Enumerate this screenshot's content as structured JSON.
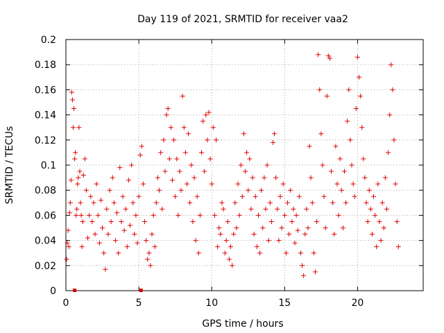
{
  "chart_data": {
    "type": "scatter",
    "title": "Day 119 of 2021, SRMTID for receiver vaa2",
    "xlabel": "GPS time / hours",
    "ylabel": "SRMTID / TECUs",
    "xlim": [
      0,
      24.5
    ],
    "ylim": [
      0,
      0.2
    ],
    "xticks": [
      0,
      5,
      10,
      15,
      20
    ],
    "xtick_labels": [
      "0",
      "5",
      "10",
      "15",
      "20"
    ],
    "yticks": [
      0,
      0.02,
      0.04,
      0.06,
      0.08,
      0.1,
      0.12,
      0.14,
      0.16,
      0.18,
      0.2
    ],
    "ytick_labels": [
      "0",
      "0.02",
      "0.04",
      "0.06",
      "0.08",
      "0.1",
      "0.12",
      "0.14",
      "0.16",
      "0.18",
      "0.2"
    ],
    "grid": true,
    "marker": "plus",
    "marker_color": "#e00000",
    "series": [
      {
        "name": "SRMTID",
        "points": [
          [
            0.05,
            0.025
          ],
          [
            0.1,
            0.038
          ],
          [
            0.15,
            0.048
          ],
          [
            0.2,
            0.035
          ],
          [
            0.25,
            0.062
          ],
          [
            0.3,
            0.07
          ],
          [
            0.35,
            0.088
          ],
          [
            0.4,
            0.158
          ],
          [
            0.45,
            0.152
          ],
          [
            0.5,
            0.13
          ],
          [
            0.55,
            0.145
          ],
          [
            0.6,
            0.105
          ],
          [
            0.65,
            0.11
          ],
          [
            0.7,
            0.06
          ],
          [
            0.75,
            0.065
          ],
          [
            0.8,
            0.085
          ],
          [
            0.85,
            0.09
          ],
          [
            0.9,
            0.13
          ],
          [
            0.95,
            0.095
          ],
          [
            1.0,
            0.07
          ],
          [
            1.05,
            0.06
          ],
          [
            1.1,
            0.035
          ],
          [
            1.15,
            0.055
          ],
          [
            1.2,
            0.092
          ],
          [
            1.3,
            0.105
          ],
          [
            1.4,
            0.08
          ],
          [
            1.5,
            0.042
          ],
          [
            1.6,
            0.06
          ],
          [
            1.7,
            0.075
          ],
          [
            1.8,
            0.055
          ],
          [
            1.9,
            0.07
          ],
          [
            2.0,
            0.045
          ],
          [
            2.1,
            0.085
          ],
          [
            2.2,
            0.06
          ],
          [
            2.3,
            0.038
          ],
          [
            2.4,
            0.072
          ],
          [
            2.5,
            0.05
          ],
          [
            2.6,
            0.03
          ],
          [
            2.7,
            0.017
          ],
          [
            2.8,
            0.065
          ],
          [
            2.9,
            0.045
          ],
          [
            3.0,
            0.08
          ],
          [
            3.1,
            0.055
          ],
          [
            3.2,
            0.09
          ],
          [
            3.3,
            0.07
          ],
          [
            3.4,
            0.04
          ],
          [
            3.5,
            0.062
          ],
          [
            3.6,
            0.03
          ],
          [
            3.7,
            0.098
          ],
          [
            3.8,
            0.055
          ],
          [
            3.9,
            0.075
          ],
          [
            4.0,
            0.048
          ],
          [
            4.1,
            0.065
          ],
          [
            4.2,
            0.035
          ],
          [
            4.3,
            0.088
          ],
          [
            4.4,
            0.052
          ],
          [
            4.5,
            0.1
          ],
          [
            4.6,
            0.07
          ],
          [
            4.7,
            0.045
          ],
          [
            4.8,
            0.06
          ],
          [
            4.9,
            0.038
          ],
          [
            5.0,
            0.075
          ],
          [
            5.1,
            0.108
          ],
          [
            5.2,
            0.115
          ],
          [
            5.3,
            0.085
          ],
          [
            5.4,
            0.055
          ],
          [
            5.5,
            0.04
          ],
          [
            5.6,
            0.025
          ],
          [
            5.7,
            0.03
          ],
          [
            5.8,
            0.02
          ],
          [
            5.9,
            0.045
          ],
          [
            6.0,
            0.06
          ],
          [
            6.1,
            0.035
          ],
          [
            6.2,
            0.07
          ],
          [
            6.3,
            0.09
          ],
          [
            6.4,
            0.08
          ],
          [
            6.5,
            0.11
          ],
          [
            6.6,
            0.065
          ],
          [
            6.7,
            0.12
          ],
          [
            6.8,
            0.095
          ],
          [
            6.9,
            0.14
          ],
          [
            7.0,
            0.145
          ],
          [
            7.1,
            0.105
          ],
          [
            7.2,
            0.13
          ],
          [
            7.3,
            0.088
          ],
          [
            7.4,
            0.12
          ],
          [
            7.5,
            0.075
          ],
          [
            7.6,
            0.105
          ],
          [
            7.7,
            0.06
          ],
          [
            7.8,
            0.095
          ],
          [
            7.9,
            0.08
          ],
          [
            8.0,
            0.155
          ],
          [
            8.1,
            0.13
          ],
          [
            8.2,
            0.11
          ],
          [
            8.3,
            0.085
          ],
          [
            8.4,
            0.125
          ],
          [
            8.5,
            0.07
          ],
          [
            8.6,
            0.1
          ],
          [
            8.7,
            0.055
          ],
          [
            8.8,
            0.09
          ],
          [
            8.9,
            0.04
          ],
          [
            9.0,
            0.075
          ],
          [
            9.1,
            0.03
          ],
          [
            9.2,
            0.06
          ],
          [
            9.3,
            0.11
          ],
          [
            9.4,
            0.135
          ],
          [
            9.5,
            0.095
          ],
          [
            9.6,
            0.14
          ],
          [
            9.7,
            0.12
          ],
          [
            9.8,
            0.142
          ],
          [
            9.9,
            0.105
          ],
          [
            10.0,
            0.085
          ],
          [
            10.1,
            0.13
          ],
          [
            10.2,
            0.06
          ],
          [
            10.3,
            0.12
          ],
          [
            10.4,
            0.035
          ],
          [
            10.5,
            0.05
          ],
          [
            10.6,
            0.045
          ],
          [
            10.7,
            0.07
          ],
          [
            10.8,
            0.065
          ],
          [
            10.9,
            0.03
          ],
          [
            11.0,
            0.04
          ],
          [
            11.1,
            0.055
          ],
          [
            11.2,
            0.025
          ],
          [
            11.3,
            0.035
          ],
          [
            11.4,
            0.02
          ],
          [
            11.5,
            0.045
          ],
          [
            11.6,
            0.07
          ],
          [
            11.7,
            0.05
          ],
          [
            11.8,
            0.085
          ],
          [
            11.9,
            0.06
          ],
          [
            12.0,
            0.1
          ],
          [
            12.1,
            0.075
          ],
          [
            12.2,
            0.125
          ],
          [
            12.3,
            0.095
          ],
          [
            12.4,
            0.11
          ],
          [
            12.5,
            0.08
          ],
          [
            12.6,
            0.105
          ],
          [
            12.7,
            0.065
          ],
          [
            12.8,
            0.09
          ],
          [
            12.9,
            0.045
          ],
          [
            13.0,
            0.075
          ],
          [
            13.1,
            0.035
          ],
          [
            13.2,
            0.06
          ],
          [
            13.3,
            0.03
          ],
          [
            13.4,
            0.08
          ],
          [
            13.5,
            0.05
          ],
          [
            13.6,
            0.09
          ],
          [
            13.7,
            0.065
          ],
          [
            13.8,
            0.1
          ],
          [
            13.9,
            0.04
          ],
          [
            14.0,
            0.07
          ],
          [
            14.1,
            0.055
          ],
          [
            14.2,
            0.118
          ],
          [
            14.3,
            0.125
          ],
          [
            14.4,
            0.09
          ],
          [
            14.5,
            0.065
          ],
          [
            14.6,
            0.04
          ],
          [
            14.7,
            0.075
          ],
          [
            14.8,
            0.05
          ],
          [
            14.9,
            0.085
          ],
          [
            15.0,
            0.06
          ],
          [
            15.1,
            0.03
          ],
          [
            15.2,
            0.07
          ],
          [
            15.3,
            0.045
          ],
          [
            15.4,
            0.08
          ],
          [
            15.5,
            0.055
          ],
          [
            15.6,
            0.065
          ],
          [
            15.7,
            0.038
          ],
          [
            15.8,
            0.06
          ],
          [
            15.9,
            0.048
          ],
          [
            16.0,
            0.075
          ],
          [
            16.1,
            0.03
          ],
          [
            16.2,
            0.02
          ],
          [
            16.3,
            0.012
          ],
          [
            16.4,
            0.045
          ],
          [
            16.5,
            0.065
          ],
          [
            16.6,
            0.05
          ],
          [
            16.7,
            0.115
          ],
          [
            16.8,
            0.09
          ],
          [
            16.9,
            0.07
          ],
          [
            17.0,
            0.03
          ],
          [
            17.1,
            0.015
          ],
          [
            17.2,
            0.055
          ],
          [
            17.3,
            0.188
          ],
          [
            17.4,
            0.16
          ],
          [
            17.5,
            0.125
          ],
          [
            17.6,
            0.1
          ],
          [
            17.7,
            0.075
          ],
          [
            17.8,
            0.05
          ],
          [
            17.9,
            0.155
          ],
          [
            18.0,
            0.187
          ],
          [
            18.1,
            0.185
          ],
          [
            18.2,
            0.095
          ],
          [
            18.3,
            0.07
          ],
          [
            18.4,
            0.045
          ],
          [
            18.5,
            0.115
          ],
          [
            18.6,
            0.085
          ],
          [
            18.7,
            0.06
          ],
          [
            18.8,
            0.105
          ],
          [
            18.9,
            0.08
          ],
          [
            19.0,
            0.05
          ],
          [
            19.1,
            0.095
          ],
          [
            19.2,
            0.07
          ],
          [
            19.3,
            0.135
          ],
          [
            19.4,
            0.16
          ],
          [
            19.5,
            0.12
          ],
          [
            19.6,
            0.1
          ],
          [
            19.7,
            0.085
          ],
          [
            19.8,
            0.075
          ],
          [
            19.9,
            0.145
          ],
          [
            20.0,
            0.186
          ],
          [
            20.1,
            0.17
          ],
          [
            20.2,
            0.155
          ],
          [
            20.3,
            0.13
          ],
          [
            20.4,
            0.105
          ],
          [
            20.5,
            0.09
          ],
          [
            20.6,
            0.07
          ],
          [
            20.7,
            0.055
          ],
          [
            20.8,
            0.08
          ],
          [
            20.9,
            0.065
          ],
          [
            21.0,
            0.045
          ],
          [
            21.1,
            0.075
          ],
          [
            21.2,
            0.06
          ],
          [
            21.3,
            0.035
          ],
          [
            21.4,
            0.085
          ],
          [
            21.5,
            0.055
          ],
          [
            21.6,
            0.04
          ],
          [
            21.7,
            0.07
          ],
          [
            21.8,
            0.05
          ],
          [
            21.9,
            0.09
          ],
          [
            22.0,
            0.065
          ],
          [
            22.1,
            0.11
          ],
          [
            22.2,
            0.14
          ],
          [
            22.3,
            0.18
          ],
          [
            22.4,
            0.16
          ],
          [
            22.5,
            0.12
          ],
          [
            22.6,
            0.085
          ],
          [
            22.7,
            0.055
          ],
          [
            22.8,
            0.035
          ]
        ]
      }
    ],
    "baseline_markers": [
      {
        "x": 0.6,
        "y": 0
      },
      {
        "x": 5.15,
        "y": 0
      }
    ]
  }
}
